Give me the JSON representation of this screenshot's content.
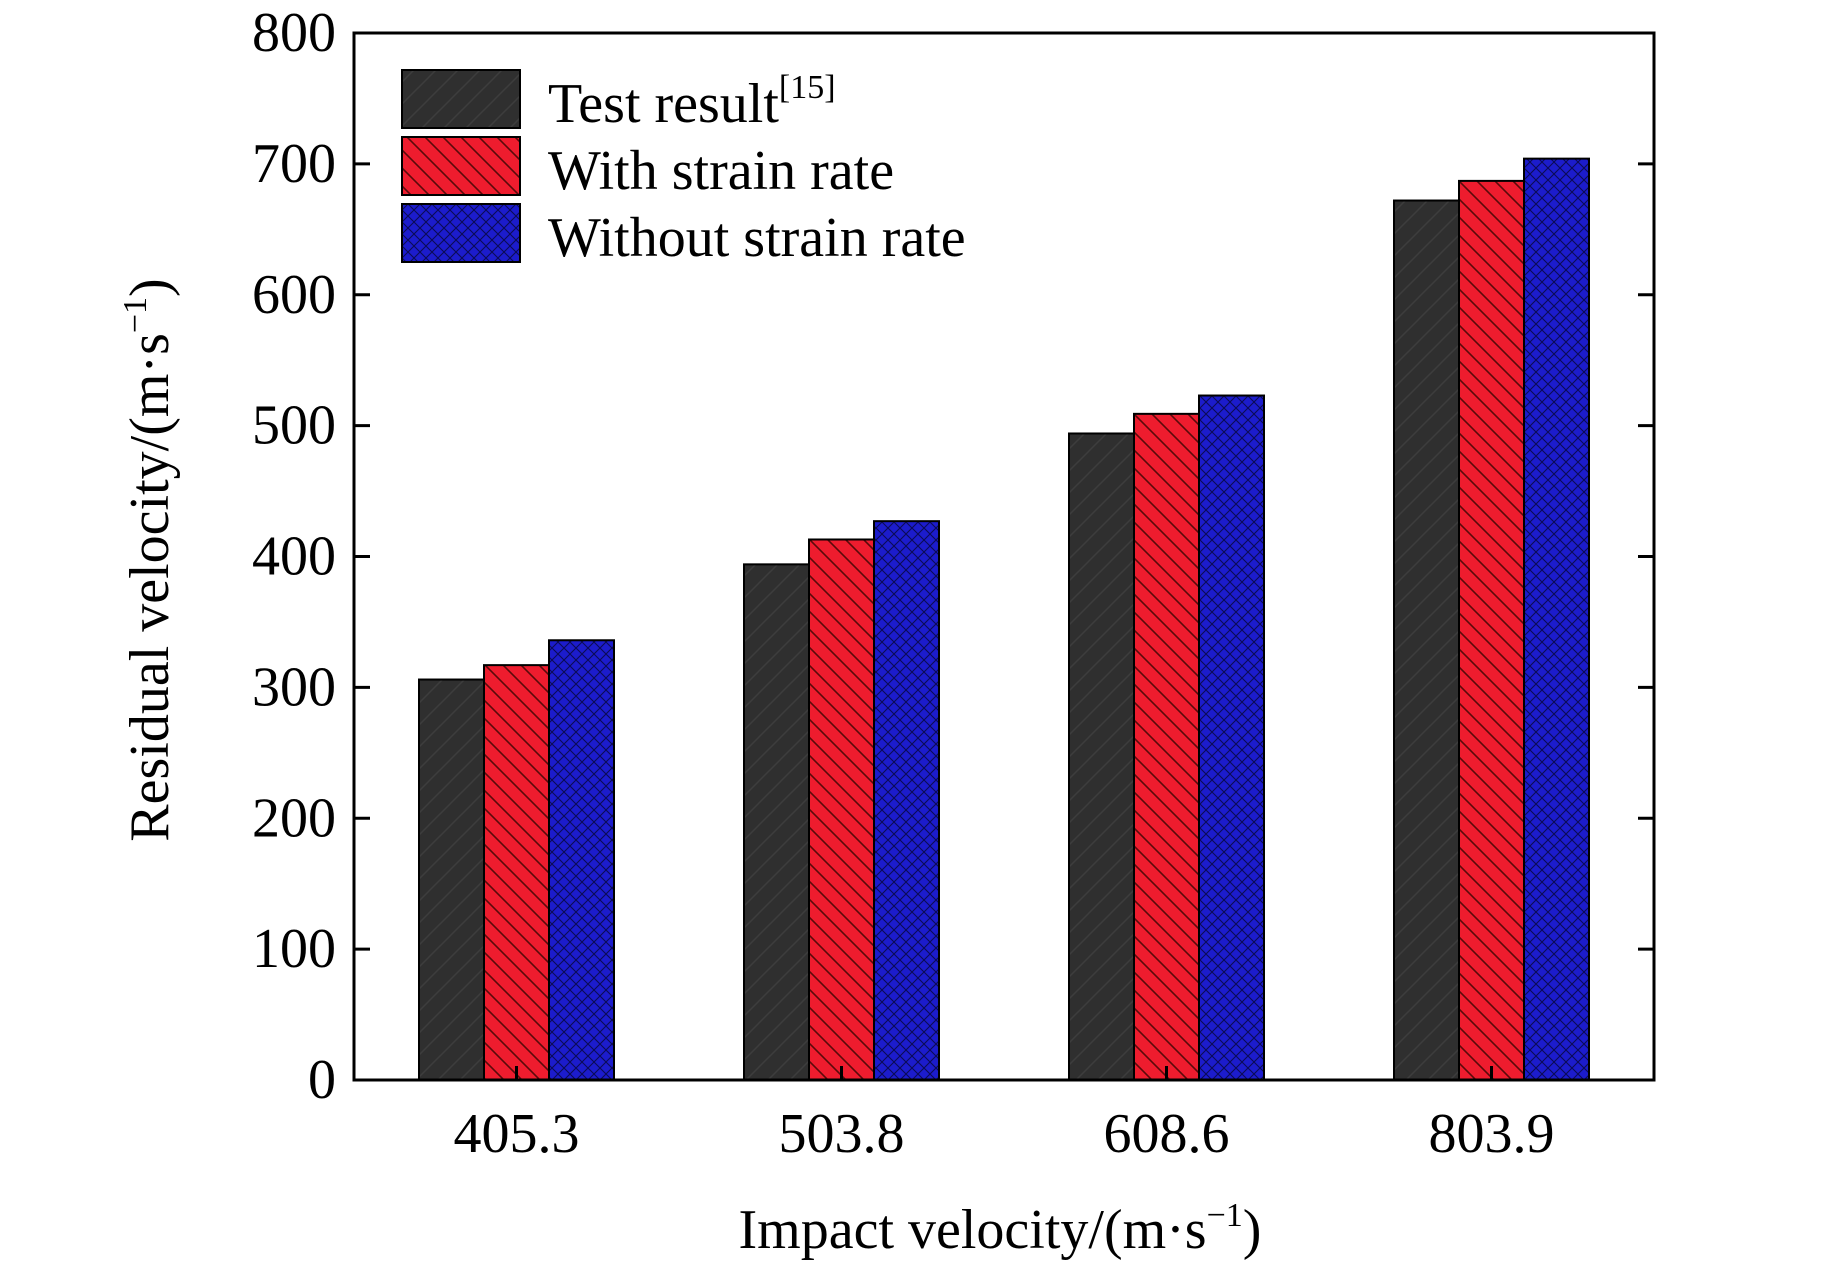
{
  "chart_data": {
    "type": "bar",
    "xlabel": "Impact velocity/(m·s",
    "xlabel_sup": "−1",
    "xlabel_close": ")",
    "ylabel": "Residual velocity/(m·s",
    "ylabel_sup": "−1",
    "ylabel_close": ")",
    "categories": [
      "405.3",
      "503.8",
      "608.6",
      "803.9"
    ],
    "ylim": [
      0,
      800
    ],
    "yticks": [
      0,
      100,
      200,
      300,
      400,
      500,
      600,
      700,
      800
    ],
    "grid": false,
    "legend_position": "top-left",
    "series": [
      {
        "name": "Test result",
        "name_sup": "[15]",
        "color": "#2f2f2f",
        "pattern": "light-forward-diagonal",
        "values": [
          306,
          394,
          494,
          672
        ]
      },
      {
        "name": "With strain rate",
        "color": "#ee1c2e",
        "pattern": "backward-diagonal",
        "values": [
          317,
          413,
          509,
          687
        ]
      },
      {
        "name": "Without strain rate",
        "color": "#1c1ccc",
        "pattern": "crosshatch",
        "values": [
          336,
          427,
          523,
          704
        ]
      }
    ]
  }
}
